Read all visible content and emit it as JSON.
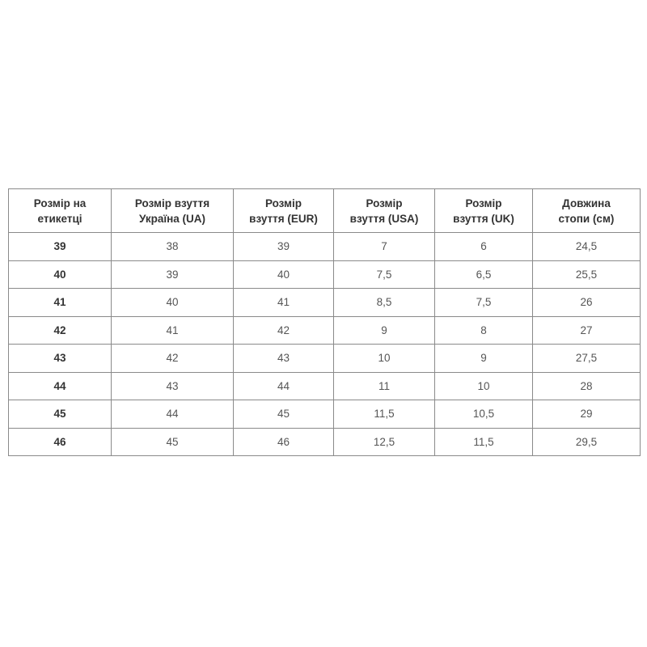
{
  "table": {
    "headers": [
      [
        "Розмір на",
        "етикетці"
      ],
      [
        "Розмір взуття",
        "Україна (UA)"
      ],
      [
        "Розмір",
        "взуття (EUR)"
      ],
      [
        "Розмір",
        "взуття (USA)"
      ],
      [
        "Розмір",
        "взуття (UK)"
      ],
      [
        "Довжина",
        "стопи (см)"
      ]
    ],
    "rows": [
      [
        "39",
        "38",
        "39",
        "7",
        "6",
        "24,5"
      ],
      [
        "40",
        "39",
        "40",
        "7,5",
        "6,5",
        "25,5"
      ],
      [
        "41",
        "40",
        "41",
        "8,5",
        "7,5",
        "26"
      ],
      [
        "42",
        "41",
        "42",
        "9",
        "8",
        "27"
      ],
      [
        "43",
        "42",
        "43",
        "10",
        "9",
        "27,5"
      ],
      [
        "44",
        "43",
        "44",
        "11",
        "10",
        "28"
      ],
      [
        "45",
        "44",
        "45",
        "11,5",
        "10,5",
        "29"
      ],
      [
        "46",
        "45",
        "46",
        "12,5",
        "11,5",
        "29,5"
      ]
    ]
  }
}
